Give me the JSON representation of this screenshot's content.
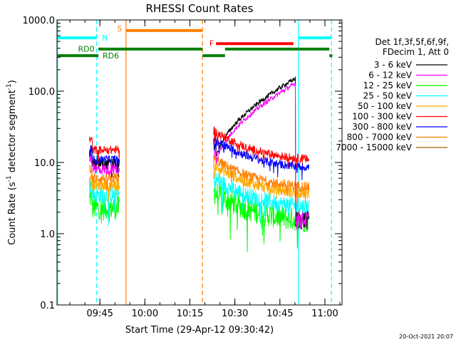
{
  "chart_data": {
    "type": "line",
    "title": "RHESSI Count Rates",
    "ylabel_main": "Count Rate (s",
    "ylabel_sup1": "-1",
    "ylabel_mid": " detector segment",
    "ylabel_sup2": "-1",
    "ylabel_end": ")",
    "xlabel": "Start Time (29-Apr-12 09:30:42)",
    "yscale": "log",
    "ylim": [
      0.1,
      1000
    ],
    "xlim_minutes": [
      0,
      95
    ],
    "y_ticks": [
      {
        "v": 1000,
        "label": "1000.0"
      },
      {
        "v": 100,
        "label": "100.0"
      },
      {
        "v": 10,
        "label": "10.0"
      },
      {
        "v": 1,
        "label": "1.0"
      },
      {
        "v": 0.1,
        "label": "0.1"
      }
    ],
    "x_ticks": [
      {
        "t": 14.3,
        "label": "09:45"
      },
      {
        "t": 29.3,
        "label": "10:00"
      },
      {
        "t": 44.3,
        "label": "10:15"
      },
      {
        "t": 59.3,
        "label": "10:30"
      },
      {
        "t": 74.3,
        "label": "10:45"
      },
      {
        "t": 89.3,
        "label": "11:00"
      }
    ],
    "legend_header": [
      "Det 1f,3f,5f,6f,9f,",
      "FDecim 1, Att 0"
    ],
    "series": [
      {
        "name": "3 - 6 keV",
        "color": "#000000",
        "seg1": 9.5,
        "seg2": 8.5,
        "spread": 0.08
      },
      {
        "name": "6 - 12 keV",
        "color": "#ff00ff",
        "seg1": 8.0,
        "seg2": 7.0,
        "spread": 0.08
      },
      {
        "name": "12 - 25 keV",
        "color": "#00ff00",
        "seg1": 2.3,
        "seg2": 1.8,
        "spread": 0.17
      },
      {
        "name": "25 - 50 keV",
        "color": "#00ffff",
        "seg1": 3.5,
        "seg2": 2.8,
        "spread": 0.12
      },
      {
        "name": "50 - 100 keV",
        "color": "#ffaa00",
        "seg1": 4.8,
        "seg2": 4.3,
        "spread": 0.08
      },
      {
        "name": "100 - 300 keV",
        "color": "#ff0000",
        "seg1": 15.0,
        "seg2": 13.0,
        "spread": 0.06
      },
      {
        "name": "300 - 800 keV",
        "color": "#0000ff",
        "seg1": 11.0,
        "seg2": 10.0,
        "spread": 0.06
      },
      {
        "name": "800 - 7000 keV",
        "color": "#ff8000",
        "seg1": 6.0,
        "seg2": 5.3,
        "spread": 0.07
      },
      {
        "name": "7000 - 15000 keV",
        "color": "#996600",
        "seg1": 0,
        "seg2": 0,
        "spread": 0
      }
    ],
    "flare_rise": {
      "start_t": 53,
      "start_v": 10,
      "peak_t": 79.3,
      "peak_v": 150,
      "end_t": 79.5
    },
    "data_segments": [
      {
        "t0": 10.8,
        "t1": 20.8
      },
      {
        "t0": 52.2,
        "t1": 84.0
      }
    ],
    "flags": [
      {
        "label": "N",
        "color": "#00ffff",
        "level": 560,
        "t0": 0.2,
        "t1": 13.2,
        "label_t": 15.0,
        "label_level": 560
      },
      {
        "label": "",
        "color": "#00ffff",
        "level": 560,
        "t0": 80.5,
        "t1": 91.5,
        "label_t": 0,
        "label_level": 0
      },
      {
        "label": "S",
        "color": "#ff8000",
        "level": 710,
        "t0": 23.0,
        "t1": 48.5,
        "label_t": 20.0,
        "label_level": 760
      },
      {
        "label": "F",
        "color": "#ff0000",
        "level": 465,
        "t0": 53.0,
        "t1": 78.8,
        "label_t": 50.8,
        "label_level": 475
      },
      {
        "label": "RD0",
        "color": "#008000",
        "level": 390,
        "t0": 13.8,
        "t1": 48.5,
        "label_t": 7.0,
        "label_level": 395
      },
      {
        "label": "",
        "color": "#008000",
        "level": 390,
        "t0": 56.0,
        "t1": 90.8,
        "label_t": 0,
        "label_level": 0
      },
      {
        "label": "RD6",
        "color": "#008000",
        "level": 315,
        "t0": 0.2,
        "t1": 13.8,
        "label_t": 15.2,
        "label_level": 318
      },
      {
        "label": "",
        "color": "#008000",
        "level": 315,
        "t0": 48.5,
        "t1": 56.0,
        "label_t": 0,
        "label_level": 0
      },
      {
        "label": "",
        "color": "#008000",
        "level": 315,
        "t0": 90.8,
        "t1": 91.8,
        "label_t": 0,
        "label_level": 0
      }
    ],
    "vlines": [
      {
        "t": 0.2,
        "color": "#00ffff",
        "dash": false
      },
      {
        "t": 13.2,
        "color": "#00ffff",
        "dash": true
      },
      {
        "t": 23.0,
        "color": "#ff8000",
        "dash": false
      },
      {
        "t": 48.5,
        "color": "#ff8000",
        "dash": true
      },
      {
        "t": 80.5,
        "color": "#00ffff",
        "dash": false
      },
      {
        "t": 91.5,
        "color": "#00ffff",
        "dash": true
      }
    ],
    "footer_date": "20-Oct-2021 20:07"
  }
}
